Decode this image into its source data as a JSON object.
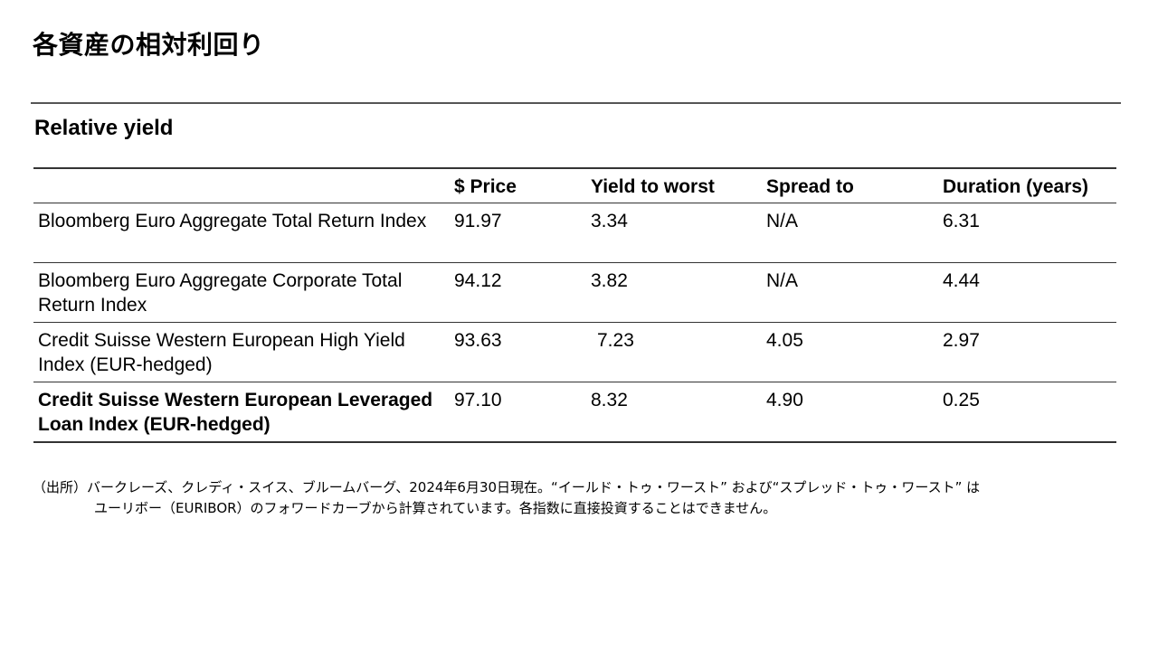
{
  "slide": {
    "title": "各資産の相対利回り"
  },
  "table": {
    "title": "Relative yield",
    "headers": [
      "",
      "$ Price",
      "Yield to worst",
      "Spread to",
      "Duration (years)"
    ],
    "rows": [
      {
        "name": "Bloomberg Euro Aggregate Total Return Index",
        "price": "91.97",
        "ytw": "3.34",
        "spread": "N/A",
        "duration": "6.31"
      },
      {
        "name": "Bloomberg Euro Aggregate Corporate Total Return Index",
        "price": "94.12",
        "ytw": "3.82",
        "spread": "N/A",
        "duration": "4.44"
      },
      {
        "name": "Credit Suisse Western European High Yield Index (EUR-hedged)",
        "price": "93.63",
        "ytw": "7.23",
        "spread": "4.05",
        "duration": "2.97"
      },
      {
        "name": "Credit Suisse Western European Leveraged Loan Index (EUR-hedged)",
        "price": "97.10",
        "ytw": "8.32",
        "spread": "4.90",
        "duration": "0.25"
      }
    ]
  },
  "footnote": {
    "line1": "（出所）バークレーズ、クレディ・スイス、ブルームバーグ、2024年6月30日現在。“イールド・トゥ・ワースト” および“スプレッド・トゥ・ワースト” は",
    "line2": "ユーリボー（EURIBOR）のフォワードカーブから計算されています。各指数に直接投資することはできません。"
  }
}
